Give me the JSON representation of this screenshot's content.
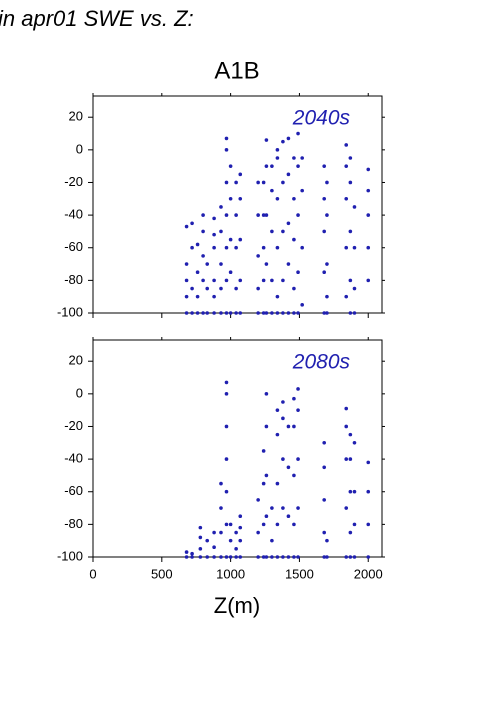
{
  "page_title": "in apr01 SWE vs. Z:",
  "chart_data": [
    {
      "type": "scatter",
      "title": "A1B",
      "annotation": "2040s",
      "color": "#2020b0",
      "xlim": [
        0,
        2100
      ],
      "ylim": [
        -100,
        33
      ],
      "xticks": [
        0,
        500,
        1000,
        1500,
        2000
      ],
      "xticklabels": false,
      "yticks": [
        -100,
        -80,
        -60,
        -40,
        -20,
        0,
        20
      ],
      "x": [
        680,
        680,
        680,
        680,
        680,
        720,
        720,
        720,
        720,
        760,
        760,
        760,
        760,
        800,
        800,
        800,
        800,
        800,
        830,
        830,
        830,
        880,
        880,
        880,
        880,
        880,
        880,
        930,
        930,
        930,
        930,
        930,
        970,
        970,
        970,
        970,
        970,
        970,
        970,
        1000,
        1000,
        1000,
        1000,
        1000,
        1040,
        1040,
        1040,
        1040,
        1040,
        1070,
        1070,
        1070,
        1070,
        1070,
        1200,
        1200,
        1200,
        1200,
        1200,
        1240,
        1240,
        1240,
        1240,
        1240,
        1260,
        1260,
        1260,
        1260,
        1260,
        1300,
        1300,
        1300,
        1300,
        1300,
        1340,
        1340,
        1340,
        1340,
        1340,
        1340,
        1380,
        1380,
        1380,
        1380,
        1380,
        1420,
        1420,
        1420,
        1420,
        1420,
        1460,
        1460,
        1460,
        1460,
        1460,
        1490,
        1490,
        1490,
        1490,
        1490,
        1520,
        1520,
        1520,
        1520,
        1680,
        1680,
        1680,
        1680,
        1680,
        1700,
        1700,
        1700,
        1700,
        1700,
        1840,
        1840,
        1840,
        1840,
        1840,
        1870,
        1870,
        1870,
        1870,
        1870,
        1900,
        1900,
        1900,
        1900,
        2000,
        2000,
        2000,
        2000,
        2000
      ],
      "values": [
        -100,
        -90,
        -80,
        -70,
        -47,
        -100,
        -85,
        -60,
        -45,
        -100,
        -90,
        -75,
        -58,
        -100,
        -80,
        -65,
        -50,
        -40,
        -100,
        -85,
        -70,
        -100,
        -90,
        -80,
        -60,
        -52,
        -42,
        -100,
        -85,
        -70,
        -50,
        -35,
        -100,
        -80,
        -60,
        -40,
        -20,
        0,
        7,
        -100,
        -75,
        -55,
        -30,
        -10,
        -100,
        -85,
        -60,
        -40,
        -20,
        -100,
        -80,
        -55,
        -30,
        -15,
        -100,
        -85,
        -65,
        -40,
        -20,
        -100,
        -80,
        -60,
        -40,
        -20,
        -100,
        -70,
        -40,
        -10,
        6,
        -100,
        -80,
        -50,
        -25,
        -10,
        -100,
        -90,
        -60,
        -30,
        -5,
        0,
        -100,
        -80,
        -50,
        -20,
        5,
        -100,
        -70,
        -45,
        -15,
        7,
        -100,
        -85,
        -55,
        -30,
        -5,
        -100,
        -75,
        -40,
        -10,
        10,
        -95,
        -60,
        -25,
        -5,
        -100,
        -75,
        -50,
        -30,
        -10,
        -100,
        -90,
        -70,
        -40,
        -20,
        -90,
        -60,
        -30,
        -10,
        3,
        -100,
        -80,
        -50,
        -20,
        -5,
        -100,
        -85,
        -60,
        -35,
        -80,
        -60,
        -40,
        -25,
        -12
      ]
    },
    {
      "type": "scatter",
      "annotation": "2080s",
      "xlabel": "Z(m)",
      "color": "#2020b0",
      "xlim": [
        0,
        2100
      ],
      "ylim": [
        -100,
        33
      ],
      "xticks": [
        0,
        500,
        1000,
        1500,
        2000
      ],
      "xticklabels": true,
      "yticks": [
        -100,
        -80,
        -60,
        -40,
        -20,
        0,
        20
      ],
      "x": [
        680,
        680,
        720,
        720,
        780,
        780,
        780,
        780,
        830,
        830,
        880,
        880,
        880,
        930,
        930,
        930,
        930,
        970,
        970,
        970,
        970,
        970,
        970,
        970,
        1000,
        1000,
        1000,
        1040,
        1040,
        1040,
        1070,
        1070,
        1070,
        1070,
        1200,
        1200,
        1200,
        1240,
        1240,
        1240,
        1240,
        1260,
        1260,
        1260,
        1260,
        1260,
        1300,
        1300,
        1300,
        1340,
        1340,
        1340,
        1340,
        1340,
        1380,
        1380,
        1380,
        1380,
        1380,
        1420,
        1420,
        1420,
        1420,
        1460,
        1460,
        1460,
        1460,
        1460,
        1490,
        1490,
        1490,
        1490,
        1490,
        1680,
        1680,
        1680,
        1680,
        1680,
        1700,
        1700,
        1840,
        1840,
        1840,
        1840,
        1840,
        1870,
        1870,
        1870,
        1870,
        1870,
        1900,
        1900,
        1900,
        1900,
        2000,
        2000,
        2000,
        2000
      ],
      "values": [
        -100,
        -97,
        -100,
        -98,
        -100,
        -95,
        -88,
        -82,
        -100,
        -90,
        -100,
        -94,
        -85,
        -100,
        -85,
        -70,
        -55,
        -100,
        -80,
        -60,
        -40,
        -20,
        0,
        7,
        -100,
        -90,
        -80,
        -100,
        -95,
        -85,
        -100,
        -90,
        -82,
        -75,
        -100,
        -85,
        -65,
        -100,
        -80,
        -55,
        -35,
        -100,
        -75,
        -50,
        -20,
        0,
        -100,
        -90,
        -70,
        -100,
        -80,
        -55,
        -25,
        -10,
        -100,
        -70,
        -40,
        -15,
        -5,
        -100,
        -75,
        -45,
        -20,
        -100,
        -80,
        -50,
        -20,
        -3,
        -100,
        -70,
        -40,
        -10,
        3,
        -100,
        -85,
        -65,
        -45,
        -30,
        -100,
        -90,
        -100,
        -70,
        -40,
        -20,
        -9,
        -100,
        -85,
        -60,
        -40,
        -25,
        -100,
        -80,
        -60,
        -30,
        -100,
        -80,
        -60,
        -42
      ]
    }
  ]
}
